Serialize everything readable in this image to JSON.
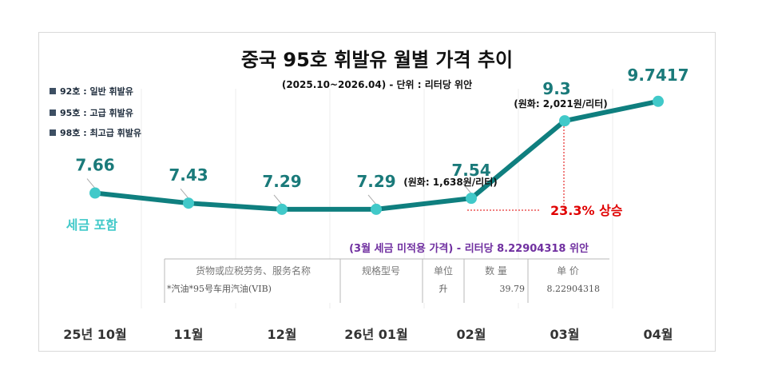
{
  "chart_data": {
    "type": "line",
    "title": "중국 95호 휘발유 월별 가격 추이",
    "subtitle": "(2025.10~2026.04) - 단위 : 리터당 위안",
    "categories": [
      "25년 10월",
      "11월",
      "12월",
      "26년 01월",
      "02월",
      "03월",
      "04월"
    ],
    "values": [
      7.66,
      7.43,
      7.29,
      7.29,
      7.54,
      9.3,
      9.7417
    ],
    "value_labels": [
      "7.66",
      "7.43",
      "7.29",
      "7.29",
      "7.54",
      "9.3",
      "9.7417"
    ],
    "ylim": [
      6.0,
      10.5
    ],
    "legend": [
      "92호 : 일반 휘발유",
      "95호 : 고급 휘발유",
      "98호 : 최고급 휘발유"
    ],
    "annotations": {
      "tax_included": "세금 포함",
      "feb_krw": "(원화: 1,638원/리터)",
      "mar_krw": "(원화: 2,021원/리터)",
      "rise": "23.3% 상승",
      "march_pretax": "(3월 세금 미적용 가격) - 리터당 8.22904318 위안"
    },
    "colors": {
      "line": "#0f7f7f",
      "marker": "#41c9c9",
      "rise": "#e00000",
      "note": "#7030a0"
    }
  },
  "invoice": {
    "headers": [
      "货物或应税劳务、服务名称",
      "规格型号",
      "单位",
      "数 量",
      "单 价"
    ],
    "row": [
      "*汽油*95号车用汽油(VIB)",
      "",
      "升",
      "39.79",
      "8.22904318"
    ]
  }
}
